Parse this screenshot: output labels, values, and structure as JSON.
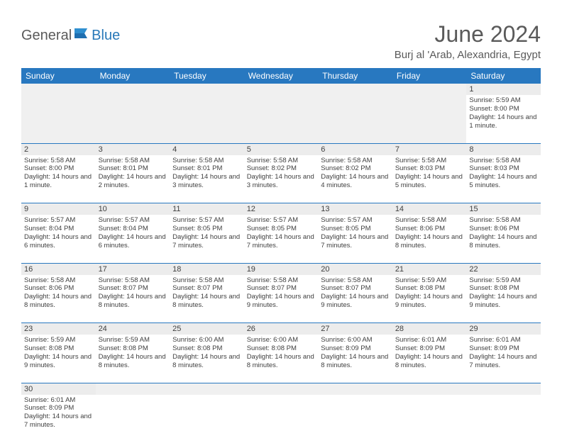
{
  "logo": {
    "general": "General",
    "blue": "Blue"
  },
  "title": "June 2024",
  "location": "Burj al 'Arab, Alexandria, Egypt",
  "colors": {
    "header_bg": "#2878c0",
    "header_text": "#ffffff",
    "daynum_bg": "#ececec",
    "cell_border": "#2878c0",
    "text": "#404040",
    "title": "#5a5a5a",
    "logo_gray": "#5a5a5a",
    "logo_blue": "#2878b8",
    "background": "#ffffff"
  },
  "day_names": [
    "Sunday",
    "Monday",
    "Tuesday",
    "Wednesday",
    "Thursday",
    "Friday",
    "Saturday"
  ],
  "weeks": [
    [
      null,
      null,
      null,
      null,
      null,
      null,
      {
        "n": "1",
        "sr": "Sunrise: 5:59 AM",
        "ss": "Sunset: 8:00 PM",
        "dl": "Daylight: 14 hours and 1 minute."
      }
    ],
    [
      {
        "n": "2",
        "sr": "Sunrise: 5:58 AM",
        "ss": "Sunset: 8:00 PM",
        "dl": "Daylight: 14 hours and 1 minute."
      },
      {
        "n": "3",
        "sr": "Sunrise: 5:58 AM",
        "ss": "Sunset: 8:01 PM",
        "dl": "Daylight: 14 hours and 2 minutes."
      },
      {
        "n": "4",
        "sr": "Sunrise: 5:58 AM",
        "ss": "Sunset: 8:01 PM",
        "dl": "Daylight: 14 hours and 3 minutes."
      },
      {
        "n": "5",
        "sr": "Sunrise: 5:58 AM",
        "ss": "Sunset: 8:02 PM",
        "dl": "Daylight: 14 hours and 3 minutes."
      },
      {
        "n": "6",
        "sr": "Sunrise: 5:58 AM",
        "ss": "Sunset: 8:02 PM",
        "dl": "Daylight: 14 hours and 4 minutes."
      },
      {
        "n": "7",
        "sr": "Sunrise: 5:58 AM",
        "ss": "Sunset: 8:03 PM",
        "dl": "Daylight: 14 hours and 5 minutes."
      },
      {
        "n": "8",
        "sr": "Sunrise: 5:58 AM",
        "ss": "Sunset: 8:03 PM",
        "dl": "Daylight: 14 hours and 5 minutes."
      }
    ],
    [
      {
        "n": "9",
        "sr": "Sunrise: 5:57 AM",
        "ss": "Sunset: 8:04 PM",
        "dl": "Daylight: 14 hours and 6 minutes."
      },
      {
        "n": "10",
        "sr": "Sunrise: 5:57 AM",
        "ss": "Sunset: 8:04 PM",
        "dl": "Daylight: 14 hours and 6 minutes."
      },
      {
        "n": "11",
        "sr": "Sunrise: 5:57 AM",
        "ss": "Sunset: 8:05 PM",
        "dl": "Daylight: 14 hours and 7 minutes."
      },
      {
        "n": "12",
        "sr": "Sunrise: 5:57 AM",
        "ss": "Sunset: 8:05 PM",
        "dl": "Daylight: 14 hours and 7 minutes."
      },
      {
        "n": "13",
        "sr": "Sunrise: 5:57 AM",
        "ss": "Sunset: 8:05 PM",
        "dl": "Daylight: 14 hours and 7 minutes."
      },
      {
        "n": "14",
        "sr": "Sunrise: 5:58 AM",
        "ss": "Sunset: 8:06 PM",
        "dl": "Daylight: 14 hours and 8 minutes."
      },
      {
        "n": "15",
        "sr": "Sunrise: 5:58 AM",
        "ss": "Sunset: 8:06 PM",
        "dl": "Daylight: 14 hours and 8 minutes."
      }
    ],
    [
      {
        "n": "16",
        "sr": "Sunrise: 5:58 AM",
        "ss": "Sunset: 8:06 PM",
        "dl": "Daylight: 14 hours and 8 minutes."
      },
      {
        "n": "17",
        "sr": "Sunrise: 5:58 AM",
        "ss": "Sunset: 8:07 PM",
        "dl": "Daylight: 14 hours and 8 minutes."
      },
      {
        "n": "18",
        "sr": "Sunrise: 5:58 AM",
        "ss": "Sunset: 8:07 PM",
        "dl": "Daylight: 14 hours and 8 minutes."
      },
      {
        "n": "19",
        "sr": "Sunrise: 5:58 AM",
        "ss": "Sunset: 8:07 PM",
        "dl": "Daylight: 14 hours and 9 minutes."
      },
      {
        "n": "20",
        "sr": "Sunrise: 5:58 AM",
        "ss": "Sunset: 8:07 PM",
        "dl": "Daylight: 14 hours and 9 minutes."
      },
      {
        "n": "21",
        "sr": "Sunrise: 5:59 AM",
        "ss": "Sunset: 8:08 PM",
        "dl": "Daylight: 14 hours and 9 minutes."
      },
      {
        "n": "22",
        "sr": "Sunrise: 5:59 AM",
        "ss": "Sunset: 8:08 PM",
        "dl": "Daylight: 14 hours and 9 minutes."
      }
    ],
    [
      {
        "n": "23",
        "sr": "Sunrise: 5:59 AM",
        "ss": "Sunset: 8:08 PM",
        "dl": "Daylight: 14 hours and 9 minutes."
      },
      {
        "n": "24",
        "sr": "Sunrise: 5:59 AM",
        "ss": "Sunset: 8:08 PM",
        "dl": "Daylight: 14 hours and 8 minutes."
      },
      {
        "n": "25",
        "sr": "Sunrise: 6:00 AM",
        "ss": "Sunset: 8:08 PM",
        "dl": "Daylight: 14 hours and 8 minutes."
      },
      {
        "n": "26",
        "sr": "Sunrise: 6:00 AM",
        "ss": "Sunset: 8:08 PM",
        "dl": "Daylight: 14 hours and 8 minutes."
      },
      {
        "n": "27",
        "sr": "Sunrise: 6:00 AM",
        "ss": "Sunset: 8:09 PM",
        "dl": "Daylight: 14 hours and 8 minutes."
      },
      {
        "n": "28",
        "sr": "Sunrise: 6:01 AM",
        "ss": "Sunset: 8:09 PM",
        "dl": "Daylight: 14 hours and 8 minutes."
      },
      {
        "n": "29",
        "sr": "Sunrise: 6:01 AM",
        "ss": "Sunset: 8:09 PM",
        "dl": "Daylight: 14 hours and 7 minutes."
      }
    ],
    [
      {
        "n": "30",
        "sr": "Sunrise: 6:01 AM",
        "ss": "Sunset: 8:09 PM",
        "dl": "Daylight: 14 hours and 7 minutes."
      },
      null,
      null,
      null,
      null,
      null,
      null
    ]
  ]
}
